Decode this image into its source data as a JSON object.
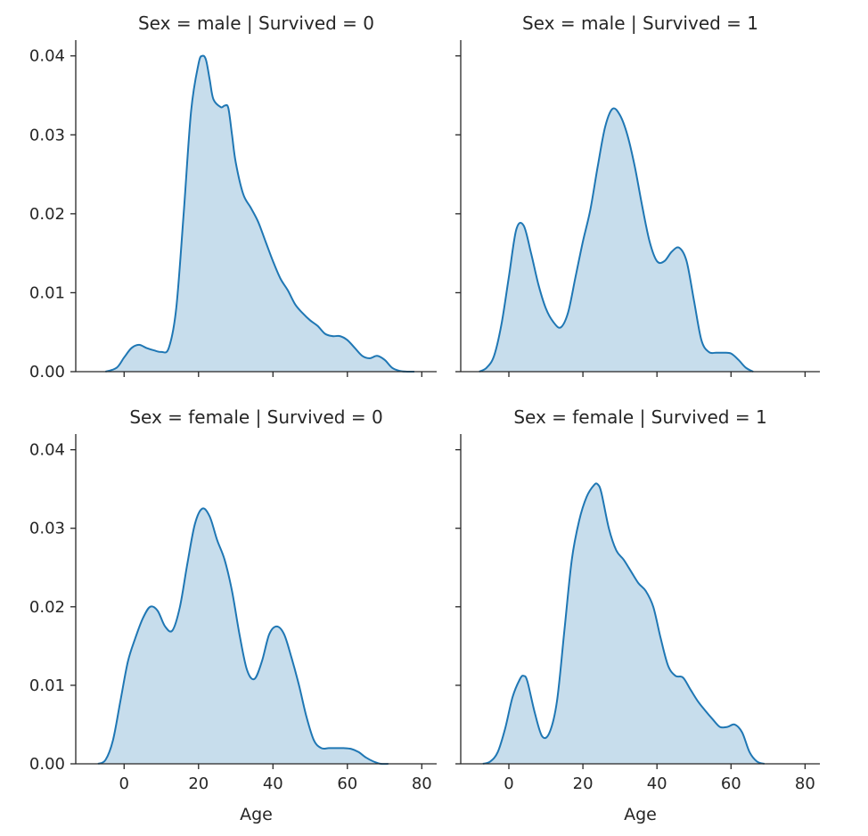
{
  "chart_data": [
    {
      "type": "area",
      "title": "Sex = male | Survived = 0",
      "xlabel": "",
      "ylabel": "",
      "xlim": [
        -13,
        84
      ],
      "ylim": [
        0,
        0.042
      ],
      "xticks": [
        0,
        20,
        40,
        60,
        80
      ],
      "yticks": [
        0.0,
        0.01,
        0.02,
        0.03,
        0.04
      ],
      "ytick_labels": [
        "0.00",
        "0.01",
        "0.02",
        "0.03",
        "0.04"
      ],
      "show_xtick_labels": false,
      "show_ytick_labels": true,
      "grid": false,
      "series": [
        {
          "x": [
            -5,
            -2,
            0,
            2,
            4,
            6,
            8,
            10,
            12,
            14,
            16,
            18,
            20,
            21,
            22,
            23,
            24,
            26,
            27,
            28,
            29,
            30,
            32,
            34,
            36,
            38,
            40,
            42,
            44,
            46,
            48,
            50,
            52,
            54,
            56,
            58,
            60,
            62,
            64,
            66,
            68,
            70,
            72,
            74,
            76,
            78
          ],
          "y": [
            0.0,
            0.0005,
            0.0018,
            0.003,
            0.0034,
            0.003,
            0.0027,
            0.0025,
            0.003,
            0.008,
            0.02,
            0.033,
            0.039,
            0.04,
            0.0395,
            0.037,
            0.0345,
            0.0335,
            0.0337,
            0.0334,
            0.03,
            0.0265,
            0.0225,
            0.0208,
            0.019,
            0.0165,
            0.014,
            0.0118,
            0.0103,
            0.0085,
            0.0074,
            0.0065,
            0.0058,
            0.0048,
            0.0045,
            0.0045,
            0.004,
            0.003,
            0.002,
            0.0017,
            0.002,
            0.0015,
            0.0005,
            0.0001,
            0.0,
            0.0
          ]
        }
      ]
    },
    {
      "type": "area",
      "title": "Sex = male | Survived = 1",
      "xlabel": "",
      "ylabel": "",
      "xlim": [
        -13,
        84
      ],
      "ylim": [
        0,
        0.042
      ],
      "xticks": [
        0,
        20,
        40,
        60,
        80
      ],
      "yticks": [
        0.0,
        0.01,
        0.02,
        0.03,
        0.04
      ],
      "show_xtick_labels": false,
      "show_ytick_labels": false,
      "grid": false,
      "series": [
        {
          "x": [
            -8,
            -6,
            -4,
            -2,
            0,
            2,
            4,
            6,
            8,
            10,
            12,
            14,
            16,
            18,
            20,
            22,
            24,
            26,
            28,
            30,
            32,
            34,
            36,
            38,
            40,
            42,
            44,
            46,
            48,
            50,
            52,
            54,
            56,
            58,
            60,
            62,
            64,
            66
          ],
          "y": [
            0.0,
            0.0005,
            0.002,
            0.006,
            0.012,
            0.018,
            0.0185,
            0.015,
            0.011,
            0.008,
            0.0063,
            0.0056,
            0.0075,
            0.012,
            0.0165,
            0.0205,
            0.026,
            0.031,
            0.0333,
            0.0325,
            0.03,
            0.026,
            0.021,
            0.0165,
            0.014,
            0.014,
            0.0152,
            0.0157,
            0.014,
            0.009,
            0.004,
            0.0025,
            0.0024,
            0.0024,
            0.0023,
            0.0015,
            0.0005,
            0.0
          ]
        }
      ]
    },
    {
      "type": "area",
      "title": "Sex = female | Survived = 0",
      "xlabel": "Age",
      "ylabel": "",
      "xlim": [
        -13,
        84
      ],
      "ylim": [
        0,
        0.042
      ],
      "xticks": [
        0,
        20,
        40,
        60,
        80
      ],
      "xtick_labels": [
        "0",
        "20",
        "40",
        "60",
        "80"
      ],
      "yticks": [
        0.0,
        0.01,
        0.02,
        0.03,
        0.04
      ],
      "ytick_labels": [
        "0.00",
        "0.01",
        "0.02",
        "0.03",
        "0.04"
      ],
      "show_xtick_labels": true,
      "show_ytick_labels": true,
      "grid": false,
      "series": [
        {
          "x": [
            -7,
            -5,
            -3,
            -1,
            1,
            3,
            5,
            7,
            9,
            11,
            13,
            15,
            17,
            19,
            21,
            23,
            25,
            27,
            29,
            31,
            33,
            35,
            37,
            39,
            41,
            43,
            45,
            47,
            49,
            51,
            53,
            55,
            57,
            59,
            61,
            63,
            65,
            67,
            69,
            71
          ],
          "y": [
            0.0,
            0.0005,
            0.003,
            0.008,
            0.013,
            0.016,
            0.0185,
            0.02,
            0.0195,
            0.0175,
            0.017,
            0.02,
            0.0255,
            0.0305,
            0.0325,
            0.0315,
            0.0285,
            0.026,
            0.022,
            0.0165,
            0.012,
            0.0108,
            0.013,
            0.0165,
            0.0175,
            0.0165,
            0.0135,
            0.01,
            0.006,
            0.003,
            0.002,
            0.002,
            0.002,
            0.002,
            0.0019,
            0.0015,
            0.0008,
            0.0003,
            0.0,
            0.0
          ]
        }
      ]
    },
    {
      "type": "area",
      "title": "Sex = female | Survived = 1",
      "xlabel": "Age",
      "ylabel": "",
      "xlim": [
        -13,
        84
      ],
      "ylim": [
        0,
        0.042
      ],
      "xticks": [
        0,
        20,
        40,
        60,
        80
      ],
      "xtick_labels": [
        "0",
        "20",
        "40",
        "60",
        "80"
      ],
      "yticks": [
        0.0,
        0.01,
        0.02,
        0.03,
        0.04
      ],
      "show_xtick_labels": true,
      "show_ytick_labels": false,
      "grid": false,
      "series": [
        {
          "x": [
            -7,
            -5,
            -3,
            -1,
            1,
            3,
            4,
            5,
            7,
            9,
            11,
            13,
            15,
            17,
            19,
            21,
            23,
            24,
            25,
            27,
            29,
            31,
            33,
            35,
            37,
            39,
            41,
            43,
            45,
            47,
            49,
            51,
            53,
            55,
            57,
            59,
            61,
            63,
            65,
            67,
            69
          ],
          "y": [
            0.0,
            0.0003,
            0.0015,
            0.0045,
            0.0085,
            0.0108,
            0.0112,
            0.0105,
            0.0065,
            0.0035,
            0.004,
            0.008,
            0.017,
            0.026,
            0.031,
            0.034,
            0.0355,
            0.0356,
            0.0345,
            0.03,
            0.0272,
            0.026,
            0.0245,
            0.023,
            0.022,
            0.02,
            0.016,
            0.0125,
            0.0112,
            0.011,
            0.0095,
            0.008,
            0.0068,
            0.0057,
            0.0047,
            0.0047,
            0.005,
            0.004,
            0.0015,
            0.0003,
            0.0
          ]
        }
      ]
    }
  ]
}
